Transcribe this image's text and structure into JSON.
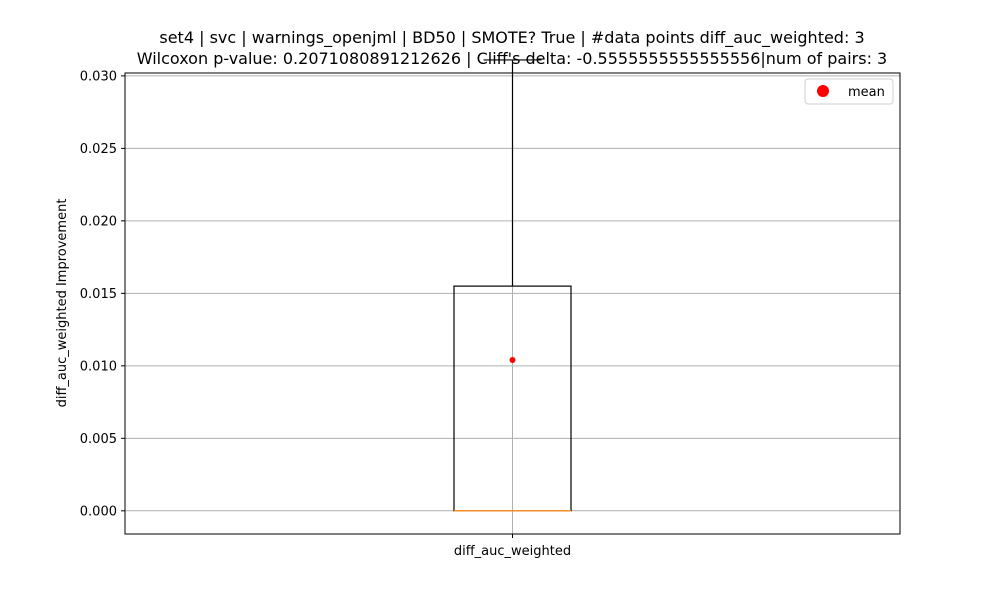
{
  "chart_data": {
    "type": "box",
    "title_line1": "set4 | svc | warnings_openjml | BD50 | SMOTE? True | #data points diff_auc_weighted: 3",
    "title_line2": "Wilcoxon p-value: 0.2071080891212626 | Cliff's delta: -0.5555555555555556|num of pairs: 3",
    "xlabel": "",
    "ylabel": "diff_auc_weighted Improvement",
    "categories": [
      "diff_auc_weighted"
    ],
    "ylim": [
      -0.0016,
      0.0302
    ],
    "yticks": [
      0.0,
      0.005,
      0.01,
      0.015,
      0.02,
      0.025,
      0.03
    ],
    "ytick_labels": [
      "0.000",
      "0.005",
      "0.010",
      "0.015",
      "0.020",
      "0.025",
      "0.030"
    ],
    "grid": true,
    "box": {
      "whisker_low": 0.0,
      "q1": 0.0,
      "median": 0.0,
      "q3": 0.0155,
      "whisker_high": 0.0311,
      "mean": 0.0104
    },
    "legend": {
      "placement": "top-right",
      "entries": [
        {
          "label": "mean",
          "color": "#ff0000"
        }
      ]
    },
    "colors": {
      "box": "#000000",
      "median": "#f28e2b",
      "mean": "#ff0000",
      "grid": "#b0b0b0"
    }
  }
}
